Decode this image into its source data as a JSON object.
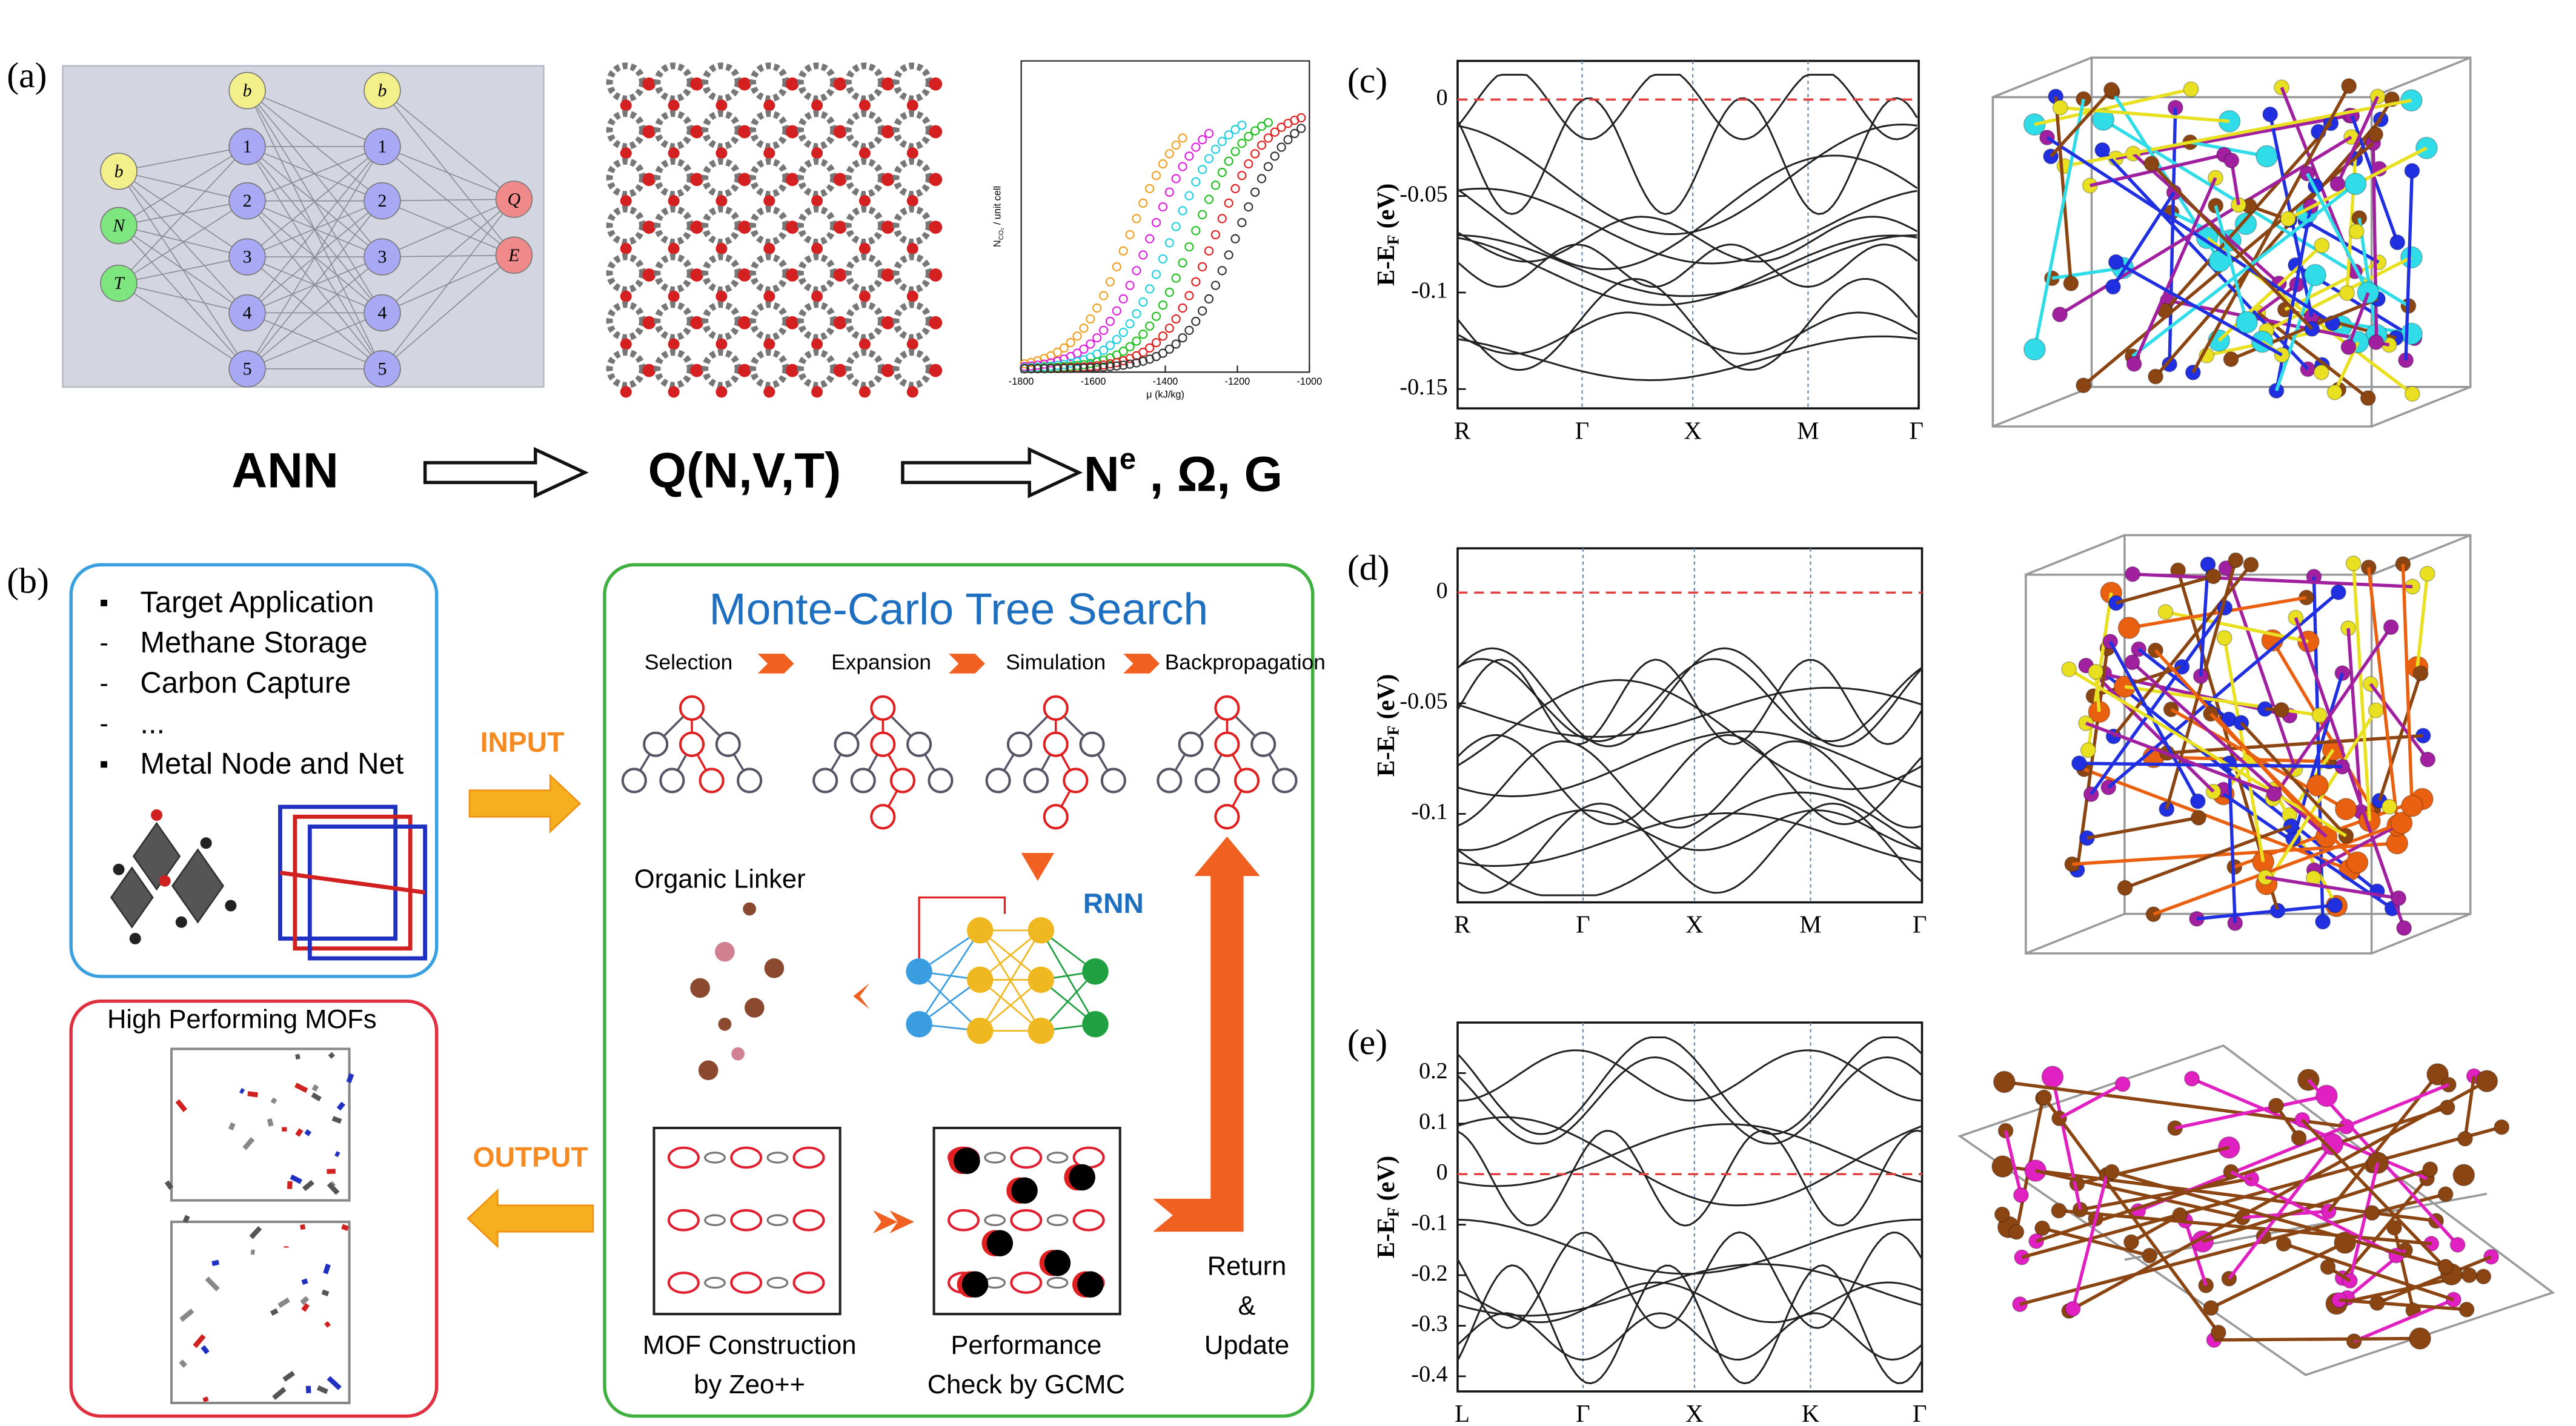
{
  "panel_a": {
    "label": "(a)",
    "network": {
      "inputs": [
        "b",
        "N",
        "T"
      ],
      "hidden_1": [
        "b",
        "1",
        "2",
        "3",
        "4",
        "5"
      ],
      "hidden_2": [
        "b",
        "1",
        "2",
        "3",
        "4",
        "5"
      ],
      "outputs": [
        "Q",
        "E"
      ]
    },
    "isotherm": {
      "ylabel": {
        "symbol": "N",
        "subscript": "CO₂",
        "unit": " / unit cell"
      },
      "xlabel": "μ (kJ/kg)",
      "xlim": [
        -1800,
        -1000
      ],
      "xticks": [
        -1800,
        -1600,
        -1400,
        -1200,
        -1000
      ]
    },
    "flow": {
      "step_1": "ANN",
      "step_2": "Q(N,V,T)",
      "step_3": {
        "symbol": "N",
        "superscript": "e",
        "rest": " , Ω, G"
      }
    }
  },
  "panel_b": {
    "label": "(b)",
    "input": {
      "items": [
        {
          "marker": "▪",
          "text": "Target Application"
        },
        {
          "marker": "-",
          "text": "Methane Storage"
        },
        {
          "marker": "-",
          "text": "Carbon Capture"
        },
        {
          "marker": "-",
          "text": "..."
        },
        {
          "marker": "▪",
          "text": "Metal Node and Net"
        }
      ]
    },
    "input_arrow": "INPUT",
    "output_arrow": "OUTPUT",
    "output": {
      "title": "High Performing MOFs"
    },
    "mcts": {
      "title": "Monte-Carlo Tree Search",
      "steps": [
        "Selection",
        "Expansion",
        "Simulation",
        "Backpropagation"
      ],
      "linker": "Organic Linker",
      "rnn": "RNN",
      "construction": [
        "MOF Construction",
        "by Zeo++"
      ],
      "check": [
        "Performance",
        "Check by GCMC"
      ],
      "return": [
        "Return",
        "&",
        "Update"
      ]
    }
  },
  "band_plots": [
    {
      "label": "(c)",
      "ylabel": {
        "symbol": "E-E",
        "subscript": "F",
        "unit": " (eV)"
      },
      "ylim": [
        -0.16,
        0.02
      ],
      "yticks": [
        0,
        -0.05,
        -0.1,
        -0.15
      ],
      "xticks": [
        "R",
        "Γ",
        "X",
        "M",
        "Γ"
      ]
    },
    {
      "label": "(d)",
      "ylabel": {
        "symbol": "E-E",
        "subscript": "F",
        "unit": " (eV)"
      },
      "ylim": [
        -0.14,
        0.02
      ],
      "yticks": [
        0,
        -0.05,
        -0.1
      ],
      "xticks": [
        "R",
        "Γ",
        "X",
        "M",
        "Γ"
      ]
    },
    {
      "label": "(e)",
      "ylabel": {
        "symbol": "E-E",
        "subscript": "F",
        "unit": " (eV)"
      },
      "ylim": [
        -0.43,
        0.3
      ],
      "yticks": [
        0.2,
        0.1,
        0,
        -0.1,
        -0.2,
        -0.3,
        -0.4
      ],
      "xticks": [
        "L",
        "Γ",
        "X",
        "K",
        "Γ"
      ]
    }
  ]
}
